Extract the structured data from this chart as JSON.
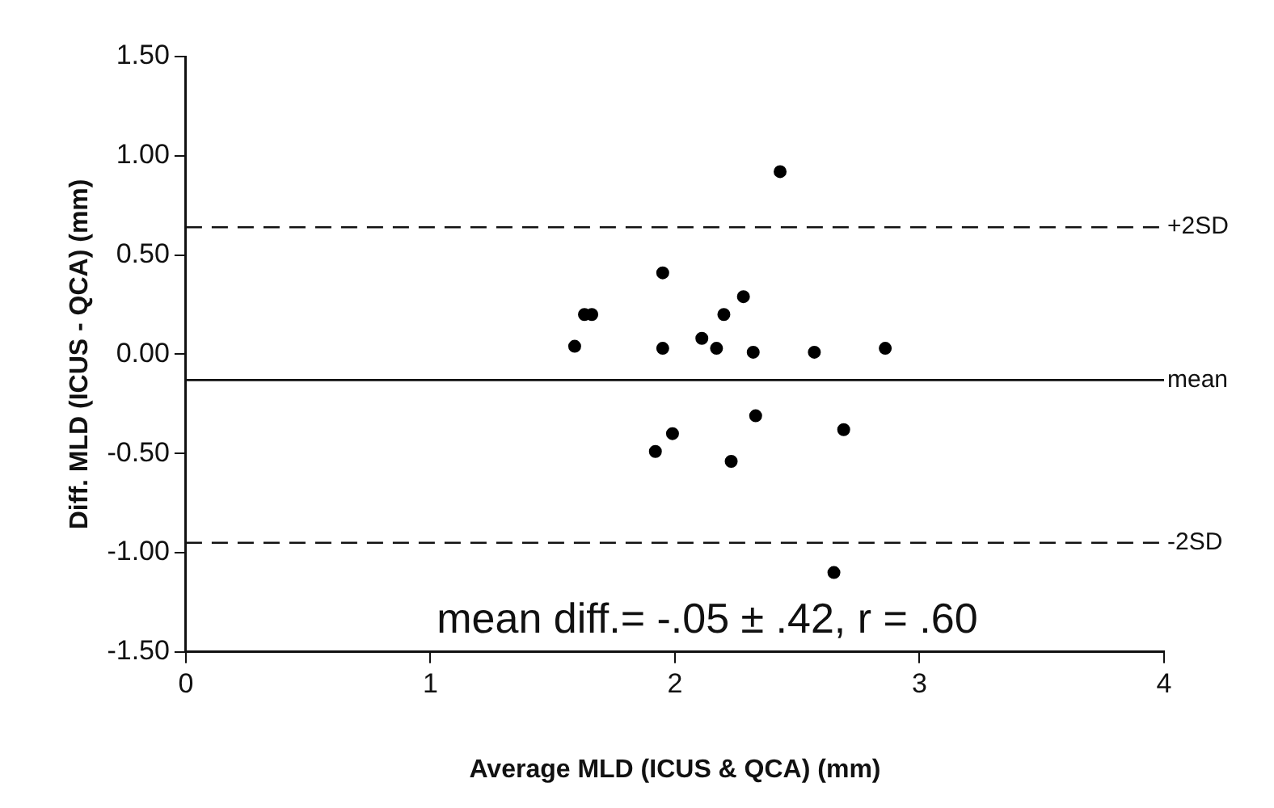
{
  "chart_data": {
    "type": "scatter",
    "xlabel": "Average MLD (ICUS & QCA) (mm)",
    "ylabel": "Diff. MLD (ICUS - QCA) (mm)",
    "series": [
      {
        "color": "#000000",
        "x": [
          2.43,
          1.95,
          1.63,
          1.66,
          2.28,
          2.2,
          1.59,
          1.95,
          2.11,
          2.17,
          2.32,
          2.57,
          2.86,
          2.33,
          1.99,
          1.92,
          2.23,
          2.69,
          2.65
        ],
        "values": [
          0.92,
          0.41,
          0.2,
          0.2,
          0.29,
          0.2,
          0.04,
          0.03,
          0.08,
          0.03,
          0.01,
          0.01,
          0.03,
          -0.31,
          -0.4,
          -0.49,
          -0.54,
          -0.38,
          -1.1
        ]
      }
    ],
    "xlim": [
      0,
      4
    ],
    "xticks": [
      0,
      1,
      2,
      3,
      4
    ],
    "ylim": [
      -1.5,
      1.5
    ],
    "yticks": [
      {
        "value": 1.5,
        "label": "1.50"
      },
      {
        "value": 1,
        "label": "1.00"
      },
      {
        "value": 0.5,
        "label": "0.50"
      },
      {
        "value": 0,
        "label": "0.00"
      },
      {
        "value": -0.5,
        "label": "-0.50"
      },
      {
        "value": -1,
        "label": "-1.00"
      },
      {
        "value": -1.5,
        "label": "-1.50"
      }
    ],
    "ref_lines": [
      {
        "axis": "y",
        "value": 0.64,
        "label": "+2SD",
        "line_style": "dashed"
      },
      {
        "axis": "y",
        "value": -0.13,
        "label": "mean",
        "line_style": "solid"
      },
      {
        "axis": "y",
        "value": -0.95,
        "label": "-2SD",
        "line_style": "dashed"
      }
    ],
    "annotations": [
      "mean diff.= -.05 ± .42, r = .60"
    ],
    "marker": "circle",
    "grid": false,
    "legend": false
  }
}
